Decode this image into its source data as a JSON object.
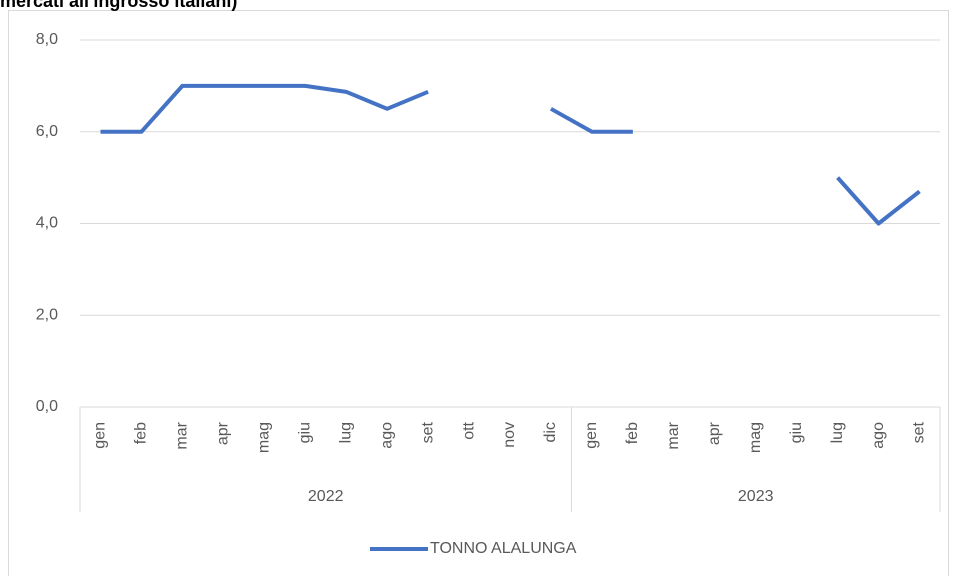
{
  "chart_data": {
    "type": "line",
    "title": "mercati all'ingrosso italiani)",
    "groups": [
      {
        "label": "2022",
        "categories": [
          "gen",
          "feb",
          "mar",
          "apr",
          "mag",
          "giu",
          "lug",
          "ago",
          "set",
          "ott",
          "nov",
          "dic"
        ]
      },
      {
        "label": "2023",
        "categories": [
          "gen",
          "feb",
          "mar",
          "apr",
          "mag",
          "giu",
          "lug",
          "ago",
          "set"
        ]
      }
    ],
    "series": [
      {
        "name": "TONNO ALALUNGA",
        "color": "#4472c4",
        "values": [
          6,
          6,
          7,
          7,
          7,
          7,
          6.87,
          6.5,
          6.87,
          null,
          null,
          6.5,
          6,
          6,
          null,
          null,
          null,
          null,
          5,
          4,
          4.7
        ]
      }
    ],
    "ylim": [
      0,
      8
    ],
    "yticks": [
      {
        "value": 0,
        "label": "0,0"
      },
      {
        "value": 2,
        "label": "2,0"
      },
      {
        "value": 4,
        "label": "4,0"
      },
      {
        "value": 6,
        "label": "6,0"
      },
      {
        "value": 8,
        "label": "8,0"
      }
    ],
    "grid": true,
    "legend": "bottom"
  }
}
